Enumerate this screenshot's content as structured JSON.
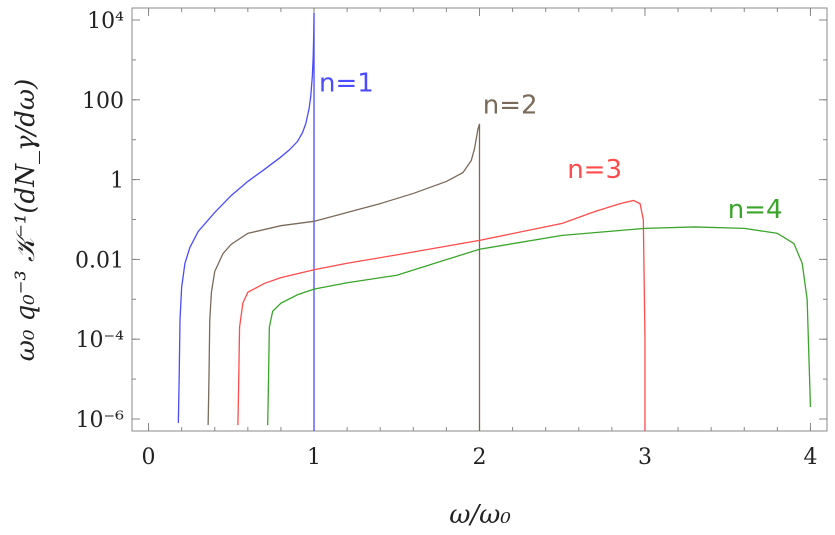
{
  "chart_data": {
    "type": "line",
    "title": "",
    "xlabel": "ω/ω₀",
    "ylabel": "ω₀ q₀⁻³ 𝒦⁻¹(dN_γ/dω)",
    "xlim": [
      -0.1,
      4.1
    ],
    "ylim": [
      5e-07,
      20000
    ],
    "yscale": "log",
    "grid": false,
    "x_ticks": [
      {
        "value": 0,
        "label": "0"
      },
      {
        "value": 1,
        "label": "1"
      },
      {
        "value": 2,
        "label": "2"
      },
      {
        "value": 3,
        "label": "3"
      },
      {
        "value": 4,
        "label": "4"
      }
    ],
    "y_ticks": [
      {
        "value": 1e-06,
        "label": "10⁻⁶"
      },
      {
        "value": 0.0001,
        "label": "10⁻⁴"
      },
      {
        "value": 0.01,
        "label": "0.01"
      },
      {
        "value": 1,
        "label": "1"
      },
      {
        "value": 100,
        "label": "100"
      },
      {
        "value": 10000,
        "label": "10⁴"
      }
    ],
    "series": [
      {
        "name": "n=1",
        "color": "#4b4bff",
        "label_pos": [
          1.03,
          160
        ],
        "x": [
          0.18,
          0.185,
          0.19,
          0.2,
          0.22,
          0.25,
          0.3,
          0.4,
          0.5,
          0.6,
          0.7,
          0.8,
          0.85,
          0.9,
          0.93,
          0.95,
          0.97,
          0.98,
          0.99,
          0.995,
          0.998,
          1.0,
          1.0
        ],
        "y": [
          8e-07,
          1e-05,
          0.0003,
          0.002,
          0.008,
          0.02,
          0.05,
          0.15,
          0.4,
          0.9,
          1.8,
          3.7,
          5.5,
          9,
          15,
          25,
          60,
          120,
          400,
          1200,
          4000,
          15000,
          5e-07
        ]
      },
      {
        "name": "n=2",
        "color": "#7a6a5a",
        "label_pos": [
          2.02,
          45
        ],
        "x": [
          0.36,
          0.365,
          0.37,
          0.38,
          0.4,
          0.45,
          0.5,
          0.6,
          0.8,
          1.0,
          1.2,
          1.4,
          1.6,
          1.8,
          1.9,
          1.95,
          1.97,
          1.99,
          2.0,
          2.0
        ],
        "y": [
          7e-07,
          1e-05,
          0.0003,
          0.0015,
          0.005,
          0.014,
          0.024,
          0.045,
          0.07,
          0.09,
          0.15,
          0.25,
          0.45,
          0.9,
          1.5,
          3,
          6,
          18,
          25,
          5e-07
        ]
      },
      {
        "name": "n=3",
        "color": "#ff4b4b",
        "label_pos": [
          2.53,
          1.1
        ],
        "x": [
          0.54,
          0.545,
          0.55,
          0.57,
          0.6,
          0.7,
          0.8,
          1.0,
          1.2,
          1.5,
          2.0,
          2.5,
          2.7,
          2.85,
          2.93,
          2.97,
          2.99,
          3.0,
          3.0
        ],
        "y": [
          7e-07,
          1e-05,
          0.0002,
          0.0008,
          0.0015,
          0.0025,
          0.0035,
          0.0055,
          0.008,
          0.013,
          0.03,
          0.08,
          0.16,
          0.25,
          0.3,
          0.25,
          0.1,
          0.0001,
          5e-07
        ]
      },
      {
        "name": "n=4",
        "color": "#3aa52a",
        "label_pos": [
          3.5,
          0.11
        ],
        "x": [
          0.72,
          0.725,
          0.73,
          0.75,
          0.8,
          0.9,
          1.0,
          1.2,
          1.5,
          2.0,
          2.5,
          3.0,
          3.3,
          3.6,
          3.8,
          3.9,
          3.95,
          3.98,
          4.0
        ],
        "y": [
          7e-07,
          1e-05,
          0.0002,
          0.0005,
          0.0008,
          0.0013,
          0.0018,
          0.0026,
          0.004,
          0.018,
          0.04,
          0.06,
          0.065,
          0.06,
          0.045,
          0.025,
          0.008,
          0.001,
          2e-06
        ]
      }
    ]
  }
}
